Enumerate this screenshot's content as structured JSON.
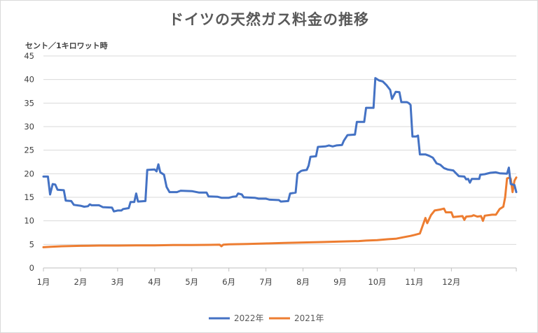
{
  "chart_data": {
    "type": "line",
    "title": "ドイツの天然ガス料金の推移",
    "ylabel": "セント／1キロワット時",
    "xlabel": "",
    "ylim": [
      0,
      45
    ],
    "yticks": [
      0,
      5,
      10,
      15,
      20,
      25,
      30,
      35,
      40,
      45
    ],
    "x_ticks": [
      "1月",
      "2月",
      "3月",
      "4月",
      "5月",
      "6月",
      "7月",
      "8月",
      "9月",
      "10月",
      "11月",
      "12月"
    ],
    "grid": "horizontal",
    "legend_position": "bottom",
    "series": [
      {
        "name": "2022年",
        "color": "#4472C4",
        "points": [
          [
            1.0,
            19.4
          ],
          [
            1.12,
            19.4
          ],
          [
            1.18,
            15.6
          ],
          [
            1.25,
            17.8
          ],
          [
            1.32,
            17.7
          ],
          [
            1.38,
            16.6
          ],
          [
            1.55,
            16.5
          ],
          [
            1.6,
            14.3
          ],
          [
            1.75,
            14.2
          ],
          [
            1.82,
            13.4
          ],
          [
            2.0,
            13.2
          ],
          [
            2.1,
            13.0
          ],
          [
            2.2,
            13.1
          ],
          [
            2.25,
            13.5
          ],
          [
            2.3,
            13.3
          ],
          [
            2.5,
            13.3
          ],
          [
            2.6,
            12.9
          ],
          [
            2.85,
            12.8
          ],
          [
            2.9,
            12.0
          ],
          [
            3.0,
            12.2
          ],
          [
            3.1,
            12.2
          ],
          [
            3.15,
            12.5
          ],
          [
            3.3,
            12.7
          ],
          [
            3.35,
            14.0
          ],
          [
            3.45,
            14.0
          ],
          [
            3.5,
            15.8
          ],
          [
            3.55,
            14.1
          ],
          [
            3.75,
            14.2
          ],
          [
            3.8,
            20.8
          ],
          [
            4.0,
            20.9
          ],
          [
            4.05,
            20.5
          ],
          [
            4.1,
            22.0
          ],
          [
            4.15,
            20.3
          ],
          [
            4.25,
            19.8
          ],
          [
            4.32,
            17.2
          ],
          [
            4.4,
            16.1
          ],
          [
            4.6,
            16.1
          ],
          [
            4.7,
            16.4
          ],
          [
            5.0,
            16.3
          ],
          [
            5.2,
            16.0
          ],
          [
            5.4,
            16.0
          ],
          [
            5.45,
            15.2
          ],
          [
            5.7,
            15.1
          ],
          [
            5.8,
            14.9
          ],
          [
            6.0,
            14.9
          ],
          [
            6.1,
            15.1
          ],
          [
            6.2,
            15.2
          ],
          [
            6.25,
            15.8
          ],
          [
            6.35,
            15.6
          ],
          [
            6.4,
            15.0
          ],
          [
            6.7,
            14.9
          ],
          [
            6.8,
            14.7
          ],
          [
            7.0,
            14.7
          ],
          [
            7.1,
            14.5
          ],
          [
            7.35,
            14.4
          ],
          [
            7.4,
            14.1
          ],
          [
            7.6,
            14.2
          ],
          [
            7.65,
            15.8
          ],
          [
            7.8,
            16.0
          ],
          [
            7.85,
            20.0
          ],
          [
            7.95,
            20.6
          ],
          [
            8.0,
            20.7
          ],
          [
            8.1,
            20.8
          ],
          [
            8.15,
            21.7
          ],
          [
            8.2,
            23.6
          ],
          [
            8.35,
            23.7
          ],
          [
            8.4,
            25.7
          ],
          [
            8.6,
            25.8
          ],
          [
            8.7,
            26.0
          ],
          [
            8.8,
            25.8
          ],
          [
            8.9,
            26.0
          ],
          [
            9.05,
            26.1
          ],
          [
            9.1,
            27.0
          ],
          [
            9.2,
            28.2
          ],
          [
            9.4,
            28.3
          ],
          [
            9.45,
            31.0
          ],
          [
            9.65,
            31.0
          ],
          [
            9.7,
            34.0
          ],
          [
            9.9,
            34.0
          ],
          [
            9.95,
            40.3
          ],
          [
            10.05,
            39.8
          ],
          [
            10.15,
            39.6
          ],
          [
            10.25,
            38.8
          ],
          [
            10.35,
            37.8
          ],
          [
            10.4,
            35.9
          ],
          [
            10.5,
            37.4
          ],
          [
            10.6,
            37.3
          ],
          [
            10.65,
            35.2
          ],
          [
            10.8,
            35.2
          ],
          [
            10.85,
            35.0
          ],
          [
            10.9,
            34.6
          ],
          [
            10.95,
            27.9
          ],
          [
            11.05,
            27.9
          ],
          [
            11.1,
            28.1
          ],
          [
            11.15,
            24.1
          ],
          [
            11.3,
            24.1
          ],
          [
            11.4,
            23.8
          ],
          [
            11.5,
            23.4
          ],
          [
            11.6,
            22.2
          ],
          [
            11.7,
            21.9
          ],
          [
            11.8,
            21.2
          ],
          [
            11.9,
            20.9
          ],
          [
            12.05,
            20.7
          ],
          [
            12.1,
            20.3
          ],
          [
            12.2,
            19.5
          ],
          [
            12.35,
            19.4
          ],
          [
            12.4,
            18.8
          ],
          [
            12.45,
            18.9
          ],
          [
            12.5,
            18.1
          ],
          [
            12.55,
            18.9
          ],
          [
            12.75,
            18.9
          ],
          [
            12.78,
            19.8
          ],
          [
            12.9,
            19.9
          ],
          [
            13.05,
            20.2
          ],
          [
            13.2,
            20.3
          ],
          [
            13.3,
            20.1
          ],
          [
            13.5,
            20.0
          ],
          [
            13.55,
            21.3
          ],
          [
            13.6,
            17.8
          ],
          [
            13.7,
            17.6
          ],
          [
            13.75,
            16.1
          ]
        ]
      },
      {
        "name": "2021年",
        "color": "#ED7D31",
        "points": [
          [
            1.0,
            4.4
          ],
          [
            1.2,
            4.5
          ],
          [
            1.5,
            4.6
          ],
          [
            2.0,
            4.7
          ],
          [
            2.5,
            4.75
          ],
          [
            3.0,
            4.75
          ],
          [
            3.5,
            4.8
          ],
          [
            4.0,
            4.8
          ],
          [
            4.5,
            4.85
          ],
          [
            5.0,
            4.85
          ],
          [
            5.5,
            4.9
          ],
          [
            5.75,
            4.95
          ],
          [
            5.8,
            4.6
          ],
          [
            5.85,
            4.95
          ],
          [
            6.0,
            5.0
          ],
          [
            6.5,
            5.1
          ],
          [
            7.0,
            5.2
          ],
          [
            7.5,
            5.3
          ],
          [
            8.0,
            5.4
          ],
          [
            8.5,
            5.5
          ],
          [
            9.0,
            5.6
          ],
          [
            9.5,
            5.7
          ],
          [
            9.7,
            5.8
          ],
          [
            10.0,
            5.9
          ],
          [
            10.3,
            6.1
          ],
          [
            10.5,
            6.2
          ],
          [
            10.7,
            6.5
          ],
          [
            10.9,
            6.8
          ],
          [
            11.0,
            7.0
          ],
          [
            11.15,
            7.3
          ],
          [
            11.3,
            10.6
          ],
          [
            11.35,
            9.5
          ],
          [
            11.45,
            11.2
          ],
          [
            11.55,
            12.2
          ],
          [
            11.7,
            12.4
          ],
          [
            11.8,
            12.6
          ],
          [
            11.85,
            11.8
          ],
          [
            12.0,
            11.8
          ],
          [
            12.05,
            10.8
          ],
          [
            12.3,
            11.0
          ],
          [
            12.35,
            10.2
          ],
          [
            12.4,
            10.9
          ],
          [
            12.55,
            11.0
          ],
          [
            12.6,
            11.2
          ],
          [
            12.7,
            10.9
          ],
          [
            12.8,
            11.0
          ],
          [
            12.85,
            10.0
          ],
          [
            12.9,
            11.1
          ],
          [
            13.1,
            11.3
          ],
          [
            13.2,
            11.3
          ],
          [
            13.3,
            12.5
          ],
          [
            13.4,
            13.0
          ],
          [
            13.45,
            15.0
          ],
          [
            13.5,
            19.0
          ],
          [
            13.58,
            19.2
          ],
          [
            13.6,
            18.9
          ],
          [
            13.65,
            16.1
          ],
          [
            13.7,
            18.5
          ],
          [
            13.75,
            19.2
          ]
        ]
      }
    ]
  }
}
